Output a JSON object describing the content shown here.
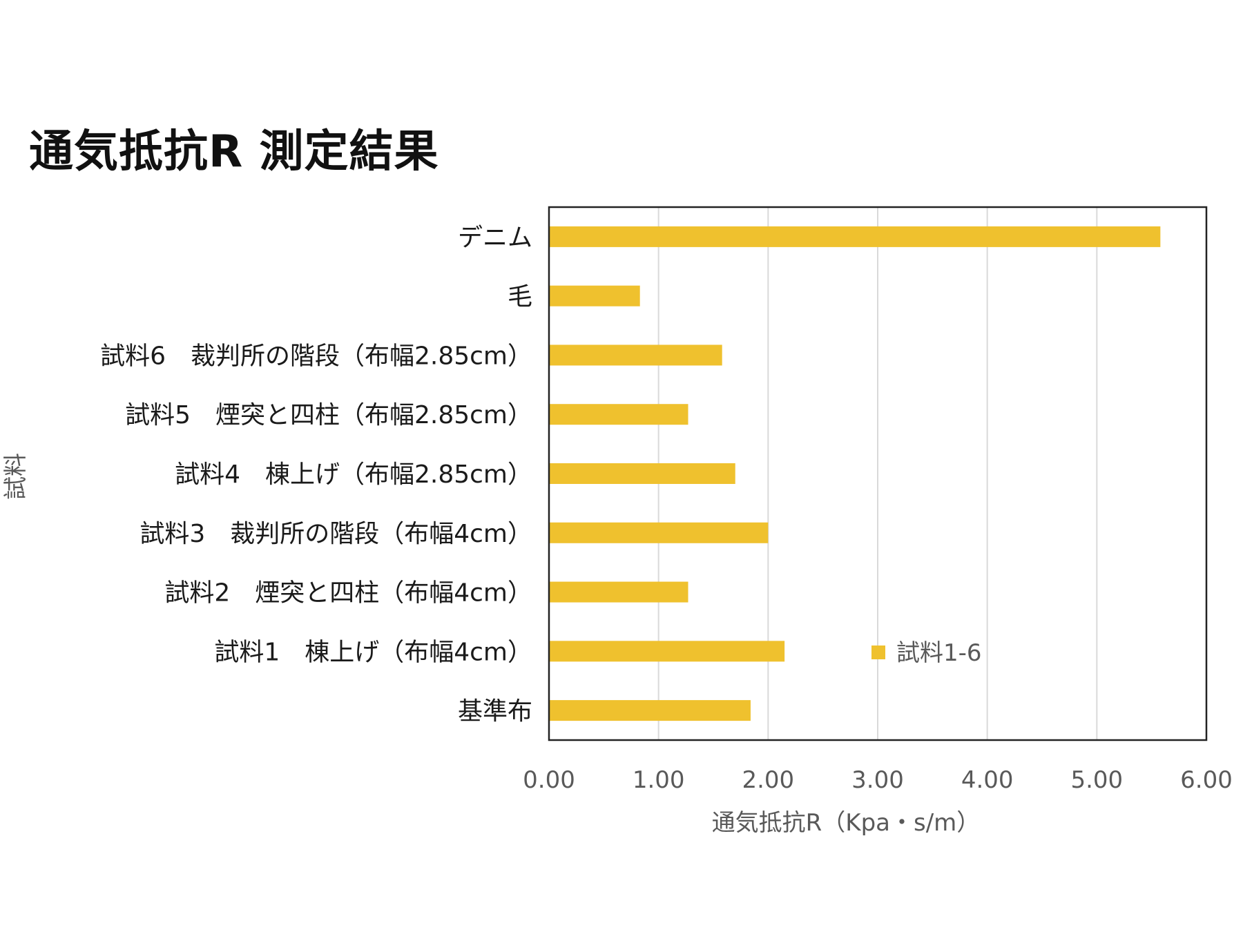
{
  "chart_data": {
    "type": "bar",
    "orientation": "horizontal",
    "title": "通気抵抗R 測定結果",
    "xlabel": "通気抵抗R（Kpa・s/m）",
    "ylabel": "試料",
    "categories": [
      "デニム",
      "毛",
      "試料6　裁判所の階段（布幅2.85cm）",
      "試料5　煙突と四柱（布幅2.85cm）",
      "試料4　棟上げ（布幅2.85cm）",
      "試料3　裁判所の階段（布幅4cm）",
      "試料2　煙突と四柱（布幅4cm）",
      "試料1　棟上げ（布幅4cm）",
      "基準布"
    ],
    "series": [
      {
        "name": "試料1-6",
        "color": "#EFC12E",
        "values": [
          5.58,
          0.83,
          1.58,
          1.27,
          1.7,
          2.0,
          1.27,
          2.15,
          1.84
        ]
      }
    ],
    "xlim": [
      0,
      6
    ],
    "xticks": [
      0,
      1,
      2,
      3,
      4,
      5,
      6
    ],
    "xtick_labels": [
      "0.00",
      "1.00",
      "2.00",
      "3.00",
      "4.00",
      "5.00",
      "6.00"
    ],
    "grid": "vertical",
    "legend": {
      "position": "inside-lower-center",
      "label": "試料1-6"
    }
  }
}
